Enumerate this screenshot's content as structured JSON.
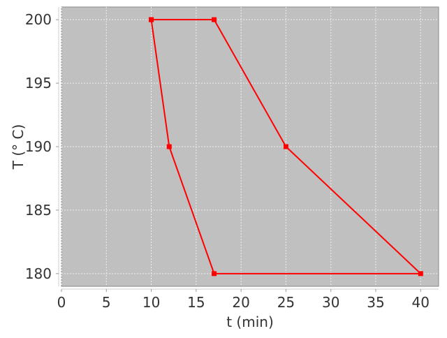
{
  "chart_data": {
    "type": "line",
    "title": "",
    "xlabel": "t (min)",
    "ylabel": "T (° C)",
    "xlim": [
      0,
      42
    ],
    "ylim": [
      179,
      201
    ],
    "xticks": [
      0,
      5,
      10,
      15,
      20,
      25,
      30,
      35,
      40
    ],
    "yticks": [
      180,
      185,
      190,
      195,
      200
    ],
    "grid": true,
    "background": "#c0c0c0",
    "series": [
      {
        "color": "#ff0000",
        "marker": "square",
        "points": [
          [
            10,
            200
          ],
          [
            17,
            200
          ],
          [
            25,
            190
          ],
          [
            40,
            180
          ],
          [
            17,
            180
          ],
          [
            12,
            190
          ],
          [
            10,
            200
          ]
        ]
      }
    ]
  }
}
